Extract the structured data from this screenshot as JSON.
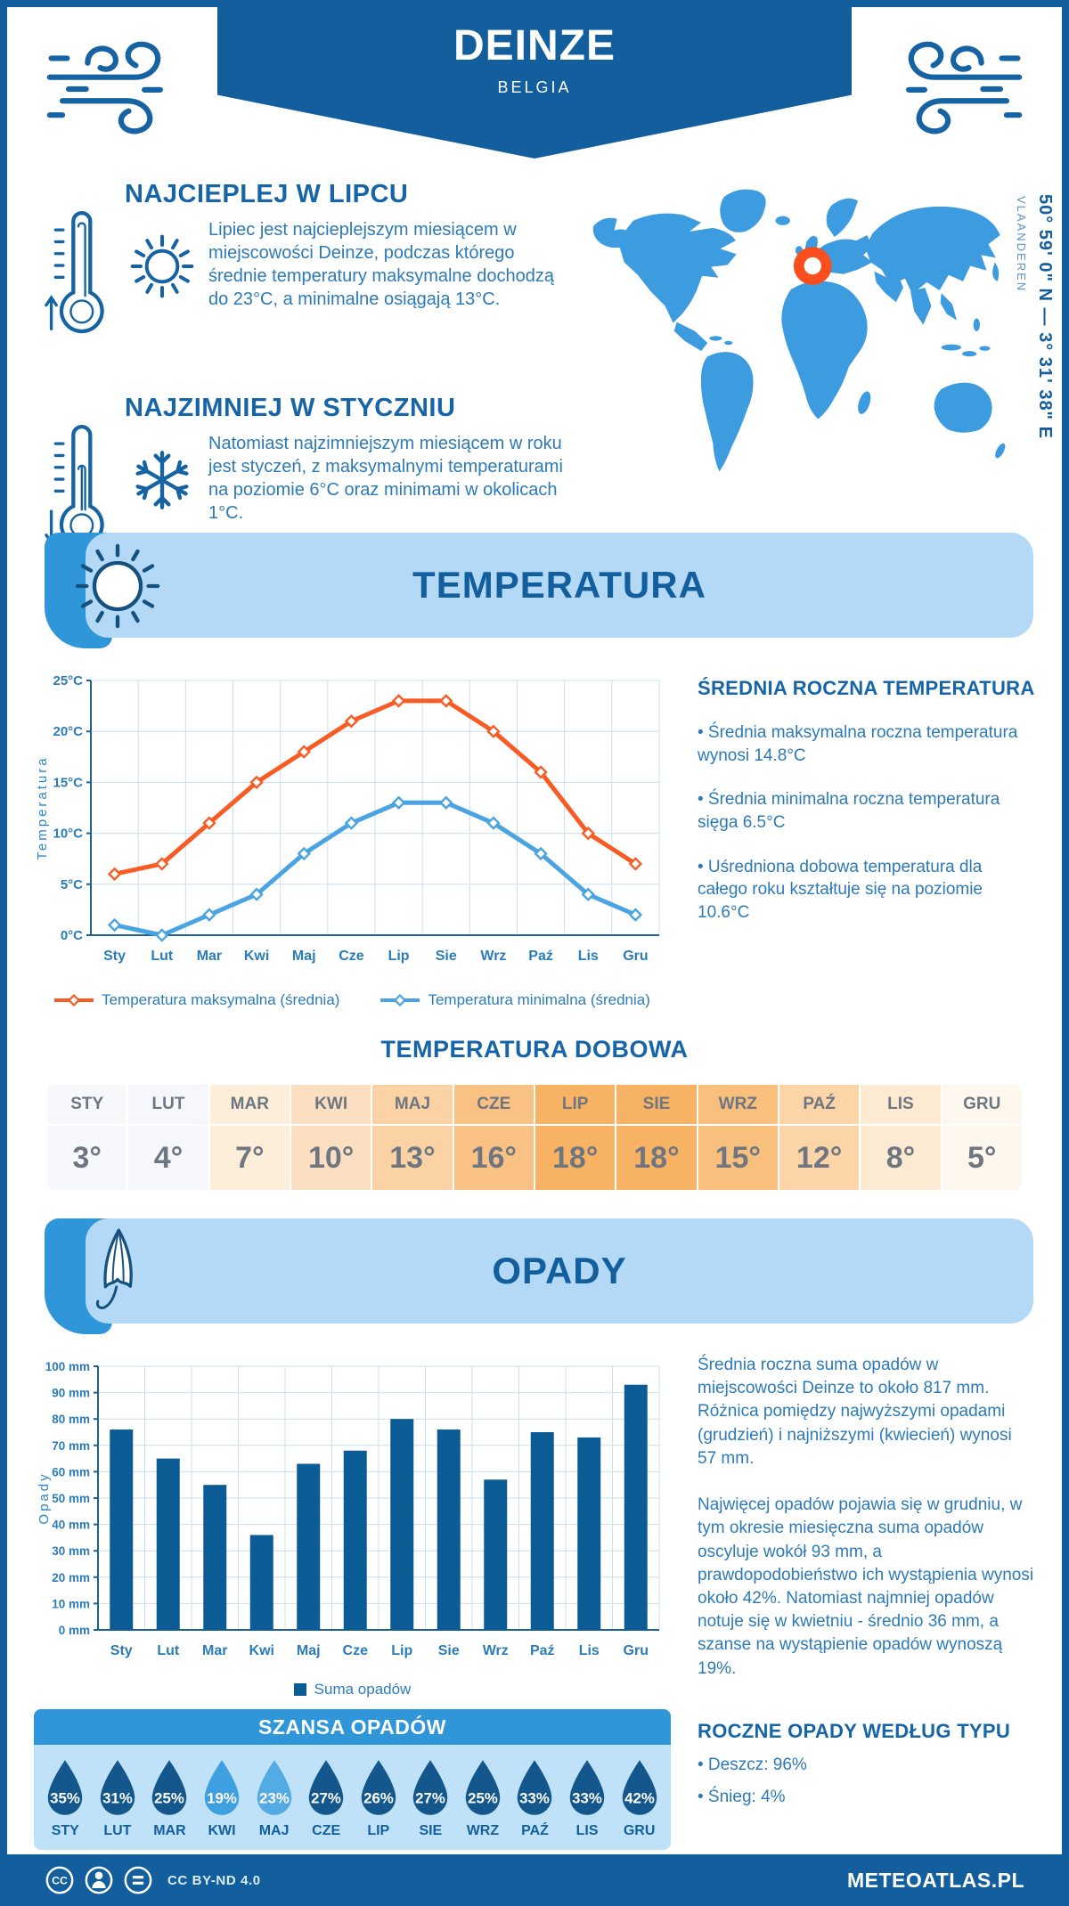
{
  "header": {
    "title": "DEINZE",
    "subtitle": "BELGIA"
  },
  "intro": {
    "warm": {
      "heading": "NAJCIEPLEJ W LIPCU",
      "text": "Lipiec jest najcieplejszym miesiącem w miejscowości Deinze, podczas którego średnie temperatury maksymalne dochodzą do 23°C, a minimalne osiągają 13°C."
    },
    "cold": {
      "heading": "NAJZIMNIEJ W STYCZNIU",
      "text": "Natomiast najzimniejszym miesiącem w roku jest styczeń, z maksymalnymi temperaturami na poziomie 6°C oraz minimami w okolicach 1°C."
    },
    "coordinates": "50° 59' 0\" N — 3° 31' 38\" E",
    "region": "VLAANDEREN"
  },
  "temperature": {
    "section_title": "TEMPERATURA",
    "annual": {
      "heading": "ŚREDNIA ROCZNA TEMPERATURA",
      "bullets": [
        "• Średnia maksymalna roczna temperatura wynosi 14.8°C",
        "• Średnia minimalna roczna temperatura sięga 6.5°C",
        "• Uśredniona dobowa temperatura dla całego roku kształtuje się na poziomie 10.6°C"
      ]
    },
    "daily": {
      "title": "TEMPERATURA DOBOWA",
      "months": [
        "STY",
        "LUT",
        "MAR",
        "KWI",
        "MAJ",
        "CZE",
        "LIP",
        "SIE",
        "WRZ",
        "PAŹ",
        "LIS",
        "GRU"
      ],
      "values": [
        "3°",
        "4°",
        "7°",
        "10°",
        "13°",
        "16°",
        "18°",
        "18°",
        "15°",
        "12°",
        "8°",
        "5°"
      ],
      "cell_colors": [
        "#f6f8fc",
        "#f5f7fb",
        "#fdeeda",
        "#fbdfc0",
        "#fad2a4",
        "#f9c183",
        "#f8b264",
        "#f8b264",
        "#f9bf7d",
        "#fbd4a8",
        "#fdead2",
        "#fef7ee"
      ]
    }
  },
  "precipitation": {
    "section_title": "OPADY",
    "paragraphs": [
      "Średnia roczna suma opadów w miejscowości Deinze to około 817 mm. Różnica pomiędzy najwyższymi opadami (grudzień) i najniższymi (kwiecień) wynosi 57 mm.",
      "Najwięcej opadów pojawia się w grudniu, w tym okresie miesięczna suma opadów oscyluje wokół 93 mm, a prawdopodobieństwo ich wystąpienia wynosi około 42%. Natomiast najmniej opadów notuje się w kwietniu - średnio 36 mm, a szanse na wystąpienie opadów wynoszą 19%."
    ],
    "type_heading": "ROCZNE OPADY WEDŁUG TYPU",
    "type_bullets": [
      "• Deszcz: 96%",
      "• Śnieg: 4%"
    ],
    "chance": {
      "title": "SZANSA OPADÓW",
      "months": [
        "STY",
        "LUT",
        "MAR",
        "KWI",
        "MAJ",
        "CZE",
        "LIP",
        "SIE",
        "WRZ",
        "PAŹ",
        "LIS",
        "GRU"
      ],
      "values": [
        "35%",
        "31%",
        "25%",
        "19%",
        "23%",
        "27%",
        "26%",
        "27%",
        "25%",
        "33%",
        "33%",
        "42%"
      ],
      "drop_colors": [
        "#14578c",
        "#14578c",
        "#14578c",
        "#3fa0df",
        "#54abe4",
        "#14578c",
        "#14578c",
        "#14578c",
        "#14578c",
        "#14578c",
        "#14578c",
        "#14578c"
      ]
    }
  },
  "footer": {
    "license": "CC BY-ND 4.0",
    "site": "METEOATLAS.PL"
  },
  "colors": {
    "brand_dark": "#135f9e",
    "banner_light": "#b3d9f6",
    "accent_tab": "#2f96d9",
    "map_blue": "#3d9cdf",
    "marker_orange": "#f94e1d",
    "grid": "#cadfef",
    "axis": "#1c6293",
    "table_text": "#6e7781"
  },
  "chart_data": [
    {
      "type": "line",
      "title": "TEMPERATURA",
      "categories": [
        "Sty",
        "Lut",
        "Mar",
        "Kwi",
        "Maj",
        "Cze",
        "Lip",
        "Sie",
        "Wrz",
        "Paź",
        "Lis",
        "Gru"
      ],
      "series": [
        {
          "name": "Temperatura maksymalna (średnia)",
          "values": [
            6,
            7,
            11,
            15,
            18,
            21,
            23,
            23,
            20,
            16,
            10,
            7
          ],
          "color": "#f95b25"
        },
        {
          "name": "Temperatura minimalna (średnia)",
          "values": [
            1,
            0,
            2,
            4,
            8,
            11,
            13,
            13,
            11,
            8,
            4,
            2
          ],
          "color": "#4aa4e2"
        }
      ],
      "xlabel": "",
      "ylabel": "Temperatura",
      "ylim": [
        0,
        25
      ],
      "ytick_step": 5,
      "ytick_suffix": "°C",
      "grid": true,
      "legend_position": "bottom"
    },
    {
      "type": "bar",
      "title": "OPADY",
      "categories": [
        "Sty",
        "Lut",
        "Mar",
        "Kwi",
        "Maj",
        "Cze",
        "Lip",
        "Sie",
        "Wrz",
        "Paź",
        "Lis",
        "Gru"
      ],
      "values": [
        76,
        65,
        55,
        36,
        63,
        68,
        80,
        76,
        57,
        75,
        73,
        93
      ],
      "legend": "Suma opadów",
      "xlabel": "",
      "ylabel": "Opady",
      "ylim": [
        0,
        100
      ],
      "ytick_step": 10,
      "ytick_suffix": " mm",
      "bar_color": "#0b5c95",
      "grid": true,
      "legend_position": "bottom"
    }
  ]
}
